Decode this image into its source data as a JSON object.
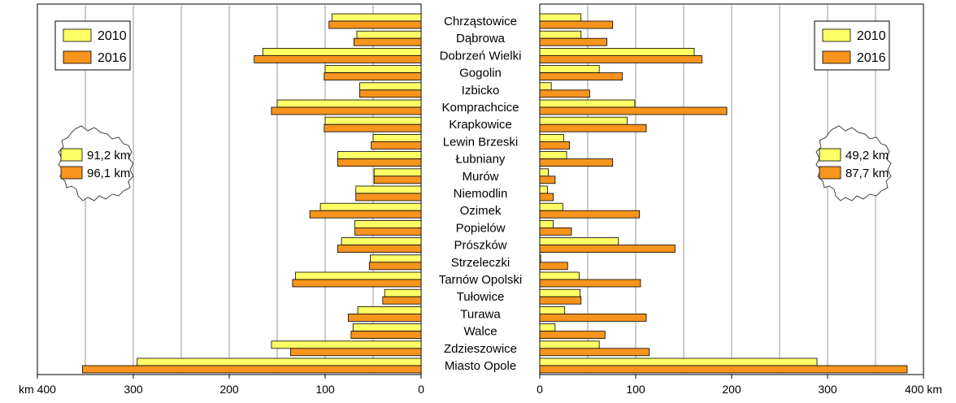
{
  "chart_data": {
    "type": "bar",
    "orientation": "horizontal",
    "layout": "back-to-back",
    "categories": [
      "Chrząstowice",
      "Dąbrowa",
      "Dobrzeń Wielki",
      "Gogolin",
      "Izbicko",
      "Komprachcice",
      "Krapkowice",
      "Lewin Brzeski",
      "Łubniany",
      "Murów",
      "Niemodlin",
      "Ozimek",
      "Popielów",
      "Prószków",
      "Strzeleczki",
      "Tarnów Opolski",
      "Tułowice",
      "Turawa",
      "Walce",
      "Zdzieszowice",
      "Miasto Opole"
    ],
    "panels": [
      {
        "side": "left",
        "direction": "reversed",
        "xlim": [
          0,
          400
        ],
        "ticks": [
          "km 400",
          "300",
          "200",
          "100",
          "0"
        ],
        "tick_values": [
          400,
          300,
          200,
          100,
          0
        ],
        "series": [
          {
            "name": "2010",
            "color": "#ffff66",
            "values": [
              93,
              67,
              165,
              100,
              64,
              150,
              100,
              50,
              87,
              49,
              68,
              105,
              69,
              83,
              53,
              131,
              38,
              66,
              71,
              156,
              296
            ]
          },
          {
            "name": "2016",
            "color": "#f7941d",
            "values": [
              96,
              70,
              174,
              101,
              64,
              156,
              101,
              52,
              87,
              49,
              68,
              116,
              69,
              87,
              54,
              134,
              40,
              76,
              73,
              136,
              353
            ]
          }
        ],
        "legend": {
          "position": "top-left",
          "items": [
            "2010",
            "2016"
          ]
        },
        "averages": [
          {
            "series": "2010",
            "label": "91,2 km"
          },
          {
            "series": "2016",
            "label": "96,1 km"
          }
        ]
      },
      {
        "side": "right",
        "direction": "normal",
        "xlim": [
          0,
          400
        ],
        "ticks": [
          "0",
          "100",
          "200",
          "300",
          "400 km"
        ],
        "tick_values": [
          0,
          100,
          200,
          300,
          400
        ],
        "series": [
          {
            "name": "2010",
            "color": "#ffff66",
            "values": [
              43,
              43,
              161,
              62,
              12,
              99,
              91,
              25,
              28,
              9,
              8,
              24,
              14,
              82,
              1,
              41,
              42,
              26,
              16,
              62,
              289
            ]
          },
          {
            "name": "2016",
            "color": "#f7941d",
            "values": [
              76,
              70,
              169,
              86,
              52,
              195,
              111,
              31,
              76,
              16,
              14,
              104,
              33,
              141,
              29,
              105,
              43,
              111,
              68,
              114,
              383
            ]
          }
        ],
        "legend": {
          "position": "top-right",
          "items": [
            "2010",
            "2016"
          ]
        },
        "averages": [
          {
            "series": "2010",
            "label": "49,2 km"
          },
          {
            "series": "2016",
            "label": "87,7 km"
          }
        ]
      }
    ],
    "grid": true,
    "colors": {
      "series_2010": "#ffff66",
      "series_2016": "#f7941d",
      "grid": "#999999",
      "frame": "#000000"
    }
  }
}
